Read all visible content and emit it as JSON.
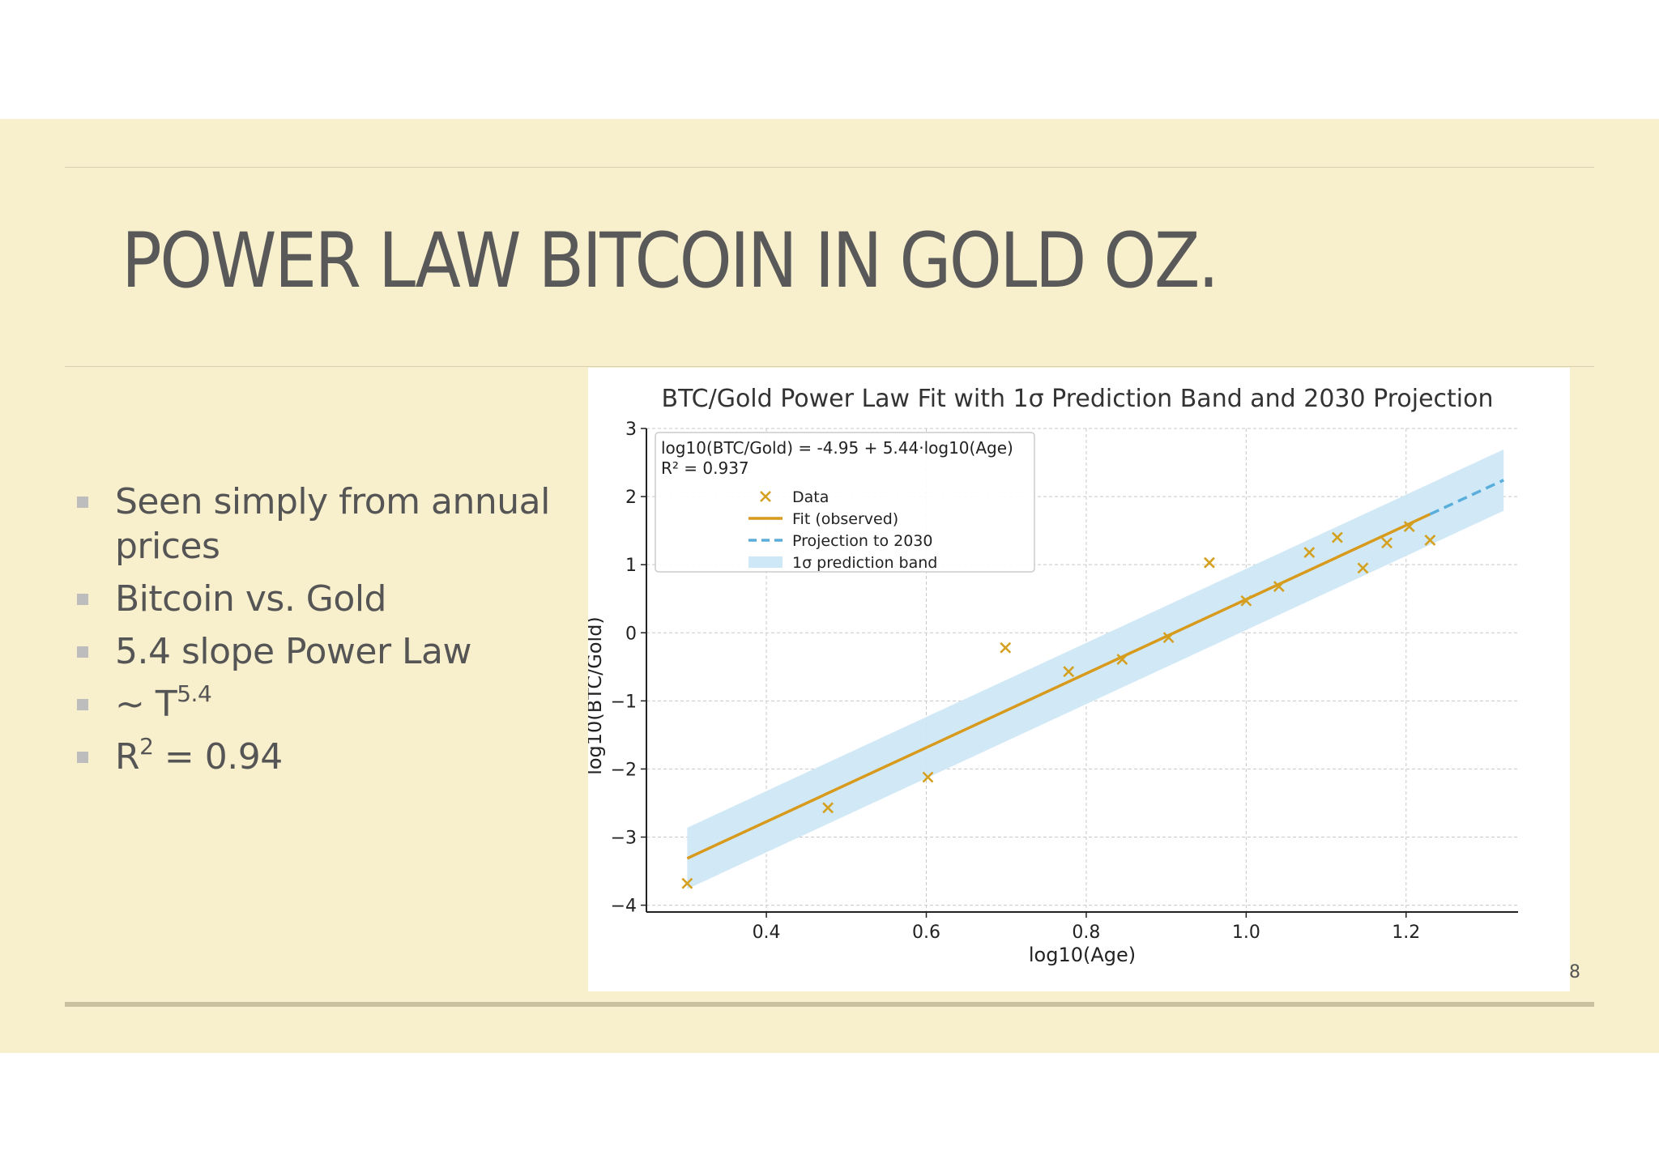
{
  "slide": {
    "title": "POWER LAW BITCOIN IN GOLD OZ.",
    "bullets": [
      {
        "text": "Seen simply from annual prices"
      },
      {
        "text": "Bitcoin vs. Gold"
      },
      {
        "text": "5.4 slope Power Law"
      },
      {
        "text": "~ T",
        "sup": "5.4"
      },
      {
        "text": "R",
        "sup": "2",
        "tail": " = 0.94"
      }
    ],
    "page_number": "8"
  },
  "colors": {
    "background": "#f8efcd",
    "fit": "#d89a1c",
    "projection": "#5aaedb",
    "band": "#cfe8f7",
    "data": "#d4a020",
    "text": "#595959"
  },
  "chart_data": {
    "type": "scatter",
    "title": "BTC/Gold Power Law Fit with 1σ Prediction Band and 2030 Projection",
    "xlabel": "log10(Age)",
    "ylabel": "log10(BTC/Gold)",
    "xlim": [
      0.25,
      1.34
    ],
    "ylim": [
      -4.1,
      3
    ],
    "xticks": [
      0.4,
      0.6,
      0.8,
      1.0,
      1.2
    ],
    "xtick_labels": [
      "0.4",
      "0.6",
      "0.8",
      "1.0",
      "1.2"
    ],
    "yticks": [
      -4,
      -3,
      -2,
      -1,
      0,
      1,
      2,
      3
    ],
    "ytick_labels": [
      "−4",
      "−3",
      "−2",
      "−1",
      "0",
      "1",
      "2",
      "3"
    ],
    "grid": true,
    "legend_position": "top-left",
    "annotation_lines": [
      "log10(BTC/Gold) = -4.95 + 5.44·log10(Age)",
      "R² = 0.937"
    ],
    "fit": {
      "intercept": -4.95,
      "slope": 5.44,
      "x_range": [
        0.301,
        1.23
      ]
    },
    "projection": {
      "x_range": [
        1.23,
        1.322
      ]
    },
    "band": {
      "sigma": 0.45,
      "x_range": [
        0.301,
        1.322
      ]
    },
    "series": [
      {
        "name": "Data",
        "x": [
          0.301,
          0.477,
          0.602,
          0.699,
          0.778,
          0.845,
          0.903,
          0.954,
          1.0,
          1.041,
          1.079,
          1.114,
          1.146,
          1.176,
          1.204,
          1.23
        ],
        "y": [
          -3.68,
          -2.57,
          -2.12,
          -0.22,
          -0.57,
          -0.39,
          -0.07,
          1.03,
          0.47,
          0.68,
          1.18,
          1.4,
          0.95,
          1.32,
          1.56,
          1.36
        ]
      }
    ],
    "legend": [
      {
        "label": "Data",
        "kind": "marker"
      },
      {
        "label": "Fit (observed)",
        "kind": "line"
      },
      {
        "label": "Projection to 2030",
        "kind": "dashed"
      },
      {
        "label": "1σ prediction band",
        "kind": "patch"
      }
    ]
  }
}
